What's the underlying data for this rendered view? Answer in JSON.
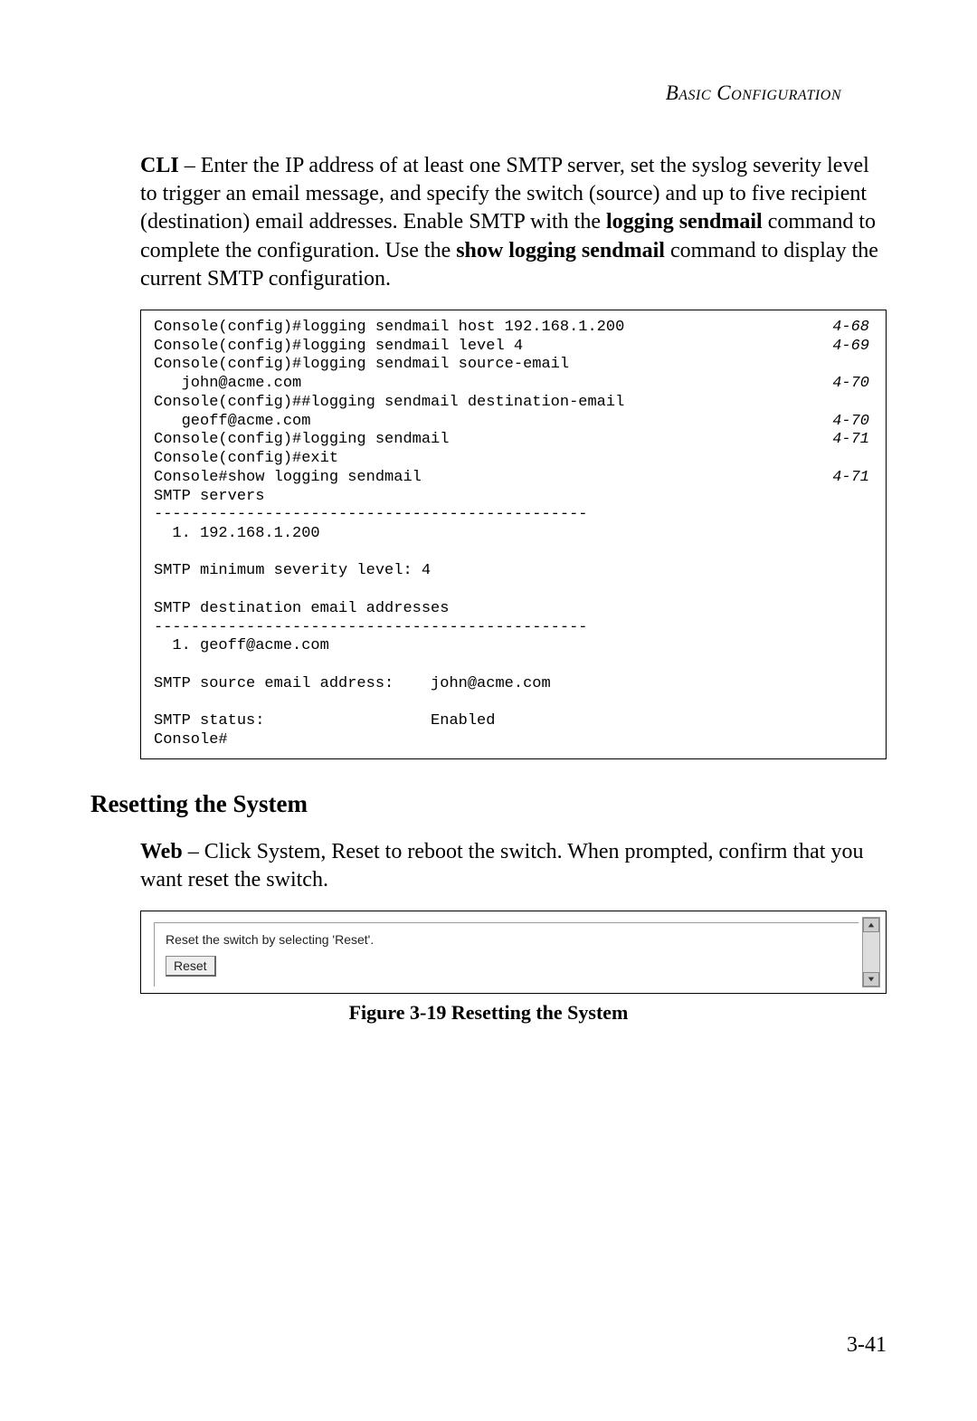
{
  "header": {
    "title": "Basic Configuration"
  },
  "para1": {
    "lead": "CLI",
    "rest": " – Enter the IP address of at least one SMTP server, set the syslog severity level to trigger an email message, and specify the switch (source) and up to five recipient (destination) email addresses. Enable SMTP with the ",
    "bold1": "logging sendmail",
    "mid": " command to complete the configuration. Use the ",
    "bold2": "show logging sendmail",
    "tail": " command to display the current SMTP configuration."
  },
  "code": {
    "lines": [
      {
        "text": "Console(config)#logging sendmail host 192.168.1.200",
        "ref": "4-68"
      },
      {
        "text": "Console(config)#logging sendmail level 4",
        "ref": "4-69"
      },
      {
        "text": "Console(config)#logging sendmail source-email",
        "ref": ""
      },
      {
        "text": "   john@acme.com",
        "ref": "4-70"
      },
      {
        "text": "Console(config)##logging sendmail destination-email",
        "ref": ""
      },
      {
        "text": "   geoff@acme.com",
        "ref": "4-70"
      },
      {
        "text": "Console(config)#logging sendmail",
        "ref": "4-71"
      },
      {
        "text": "Console(config)#exit",
        "ref": ""
      },
      {
        "text": "Console#show logging sendmail",
        "ref": "4-71"
      },
      {
        "text": "SMTP servers",
        "ref": ""
      },
      {
        "text": "-----------------------------------------------",
        "ref": ""
      },
      {
        "text": "  1. 192.168.1.200",
        "ref": ""
      },
      {
        "text": "",
        "ref": ""
      },
      {
        "text": "SMTP minimum severity level: 4",
        "ref": ""
      },
      {
        "text": "",
        "ref": ""
      },
      {
        "text": "SMTP destination email addresses",
        "ref": ""
      },
      {
        "text": "-----------------------------------------------",
        "ref": ""
      },
      {
        "text": "  1. geoff@acme.com",
        "ref": ""
      },
      {
        "text": "",
        "ref": ""
      },
      {
        "text": "SMTP source email address:    john@acme.com",
        "ref": ""
      },
      {
        "text": "",
        "ref": ""
      },
      {
        "text": "SMTP status:                  Enabled",
        "ref": ""
      },
      {
        "text": "Console#",
        "ref": ""
      }
    ]
  },
  "section2": {
    "heading": "Resetting the System"
  },
  "para2": {
    "lead": "Web",
    "rest": " – Click System, Reset to reboot the switch. When prompted, confirm that you want reset the switch."
  },
  "screenshot": {
    "text": "Reset the switch by selecting 'Reset'.",
    "button": "Reset"
  },
  "figure": {
    "caption": "Figure 3-19  Resetting the System"
  },
  "page_number": "3-41",
  "colors": {
    "text": "#000000",
    "background": "#ffffff",
    "border": "#000000",
    "ui_grey": "#dddddd"
  },
  "fonts": {
    "body": "Garamond / Times serif",
    "body_size_pt": 18,
    "heading_size_pt": 20,
    "code": "Courier New",
    "code_size_pt": 12,
    "ui": "Arial",
    "ui_size_pt": 10
  }
}
